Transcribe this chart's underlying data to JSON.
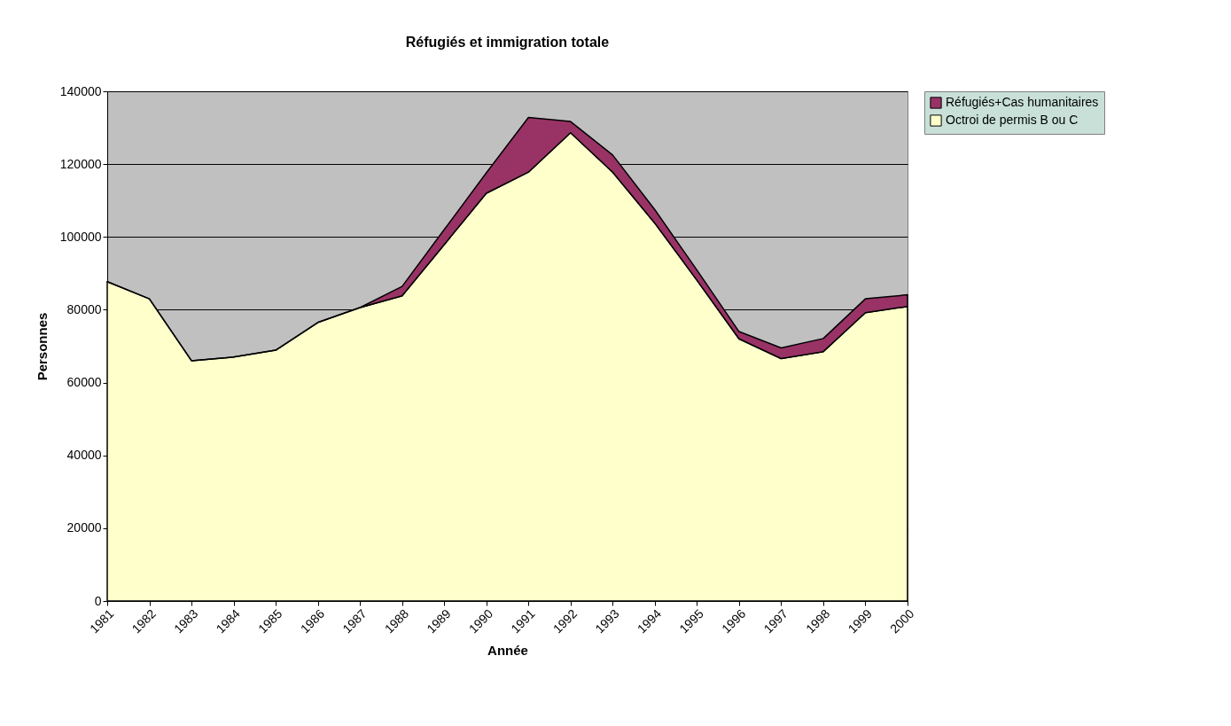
{
  "chart_data": {
    "type": "area",
    "title": "Réfugiés et immigration totale",
    "xlabel": "Année",
    "ylabel": "Personnes",
    "categories": [
      "1981",
      "1982",
      "1983",
      "1984",
      "1985",
      "1986",
      "1987",
      "1988",
      "1989",
      "1990",
      "1991",
      "1992",
      "1993",
      "1994",
      "1995",
      "1996",
      "1997",
      "1998",
      "1999",
      "2000"
    ],
    "stacked": true,
    "series": [
      {
        "name": "Octroi de permis B ou C",
        "color": "#ffffcc",
        "values": [
          87700,
          83000,
          66000,
          67000,
          68900,
          76500,
          80600,
          83800,
          97900,
          112000,
          117800,
          128600,
          117800,
          103800,
          88100,
          72000,
          66600,
          68500,
          79200,
          80900
        ]
      },
      {
        "name": "Réfugiés+Cas humanitaires",
        "color": "#993366",
        "values": [
          0,
          0,
          0,
          0,
          0,
          0,
          0,
          2600,
          4100,
          5600,
          15000,
          3100,
          4700,
          3700,
          2800,
          2000,
          2900,
          3600,
          3800,
          3200
        ]
      }
    ],
    "ylim": [
      0,
      140000
    ],
    "yticks": [
      0,
      20000,
      40000,
      60000,
      80000,
      100000,
      120000,
      140000
    ],
    "grid": "y",
    "legend": "right"
  }
}
